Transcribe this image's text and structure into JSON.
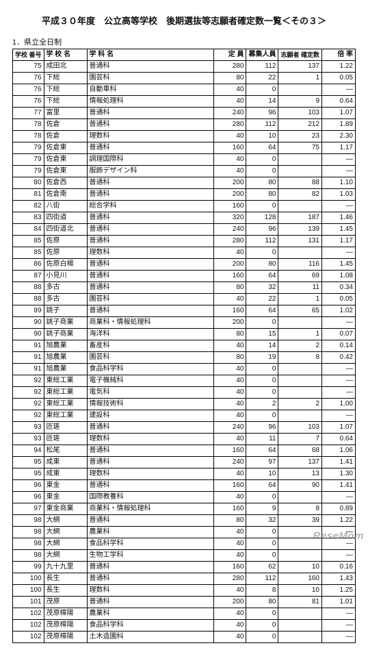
{
  "title": "平成３０年度　公立高等学校　後期選抜等志願者確定数一覧＜その３＞",
  "subtitle": "1．県立全日制",
  "headers": {
    "id": "学校\n番号",
    "school": "学 校 名",
    "dept": "学 科 名",
    "cap": "定 員",
    "rec": "募集人員",
    "app": "志願者\n確定数",
    "rate": "倍 率"
  },
  "rows": [
    {
      "id": "75",
      "school": "成田北",
      "dept": "普通科",
      "cap": "280",
      "rec": "112",
      "app": "137",
      "rate": "1.22"
    },
    {
      "id": "76",
      "school": "下総",
      "dept": "園芸科",
      "cap": "80",
      "rec": "22",
      "app": "1",
      "rate": "0.05"
    },
    {
      "id": "76",
      "school": "下総",
      "dept": "自動車科",
      "cap": "40",
      "rec": "0",
      "app": "",
      "rate": "—"
    },
    {
      "id": "76",
      "school": "下総",
      "dept": "情報処理科",
      "cap": "40",
      "rec": "14",
      "app": "9",
      "rate": "0.64"
    },
    {
      "id": "77",
      "school": "富里",
      "dept": "普通科",
      "cap": "240",
      "rec": "96",
      "app": "103",
      "rate": "1.07"
    },
    {
      "id": "78",
      "school": "佐倉",
      "dept": "普通科",
      "cap": "280",
      "rec": "112",
      "app": "212",
      "rate": "1.89"
    },
    {
      "id": "78",
      "school": "佐倉",
      "dept": "理数科",
      "cap": "40",
      "rec": "10",
      "app": "23",
      "rate": "2.30"
    },
    {
      "id": "79",
      "school": "佐倉東",
      "dept": "普通科",
      "cap": "160",
      "rec": "64",
      "app": "75",
      "rate": "1.17"
    },
    {
      "id": "79",
      "school": "佐倉東",
      "dept": "調理国際科",
      "cap": "40",
      "rec": "0",
      "app": "",
      "rate": "—"
    },
    {
      "id": "79",
      "school": "佐倉東",
      "dept": "服飾デザイン科",
      "cap": "40",
      "rec": "0",
      "app": "",
      "rate": "—"
    },
    {
      "id": "80",
      "school": "佐倉西",
      "dept": "普通科",
      "cap": "200",
      "rec": "80",
      "app": "88",
      "rate": "1.10"
    },
    {
      "id": "81",
      "school": "佐倉南",
      "dept": "普通科",
      "cap": "200",
      "rec": "80",
      "app": "82",
      "rate": "1.03"
    },
    {
      "id": "82",
      "school": "八街",
      "dept": "総合学科",
      "cap": "160",
      "rec": "0",
      "app": "",
      "rate": "—"
    },
    {
      "id": "83",
      "school": "四街道",
      "dept": "普通科",
      "cap": "320",
      "rec": "128",
      "app": "187",
      "rate": "1.46"
    },
    {
      "id": "84",
      "school": "四街道北",
      "dept": "普通科",
      "cap": "240",
      "rec": "96",
      "app": "139",
      "rate": "1.45"
    },
    {
      "id": "85",
      "school": "佐原",
      "dept": "普通科",
      "cap": "280",
      "rec": "112",
      "app": "131",
      "rate": "1.17"
    },
    {
      "id": "85",
      "school": "佐原",
      "dept": "理数科",
      "cap": "40",
      "rec": "0",
      "app": "",
      "rate": "—"
    },
    {
      "id": "86",
      "school": "佐原白楊",
      "dept": "普通科",
      "cap": "200",
      "rec": "80",
      "app": "116",
      "rate": "1.45"
    },
    {
      "id": "87",
      "school": "小見川",
      "dept": "普通科",
      "cap": "160",
      "rec": "64",
      "app": "69",
      "rate": "1.08"
    },
    {
      "id": "88",
      "school": "多古",
      "dept": "普通科",
      "cap": "80",
      "rec": "32",
      "app": "11",
      "rate": "0.34"
    },
    {
      "id": "88",
      "school": "多古",
      "dept": "園芸科",
      "cap": "40",
      "rec": "22",
      "app": "1",
      "rate": "0.05"
    },
    {
      "id": "89",
      "school": "銚子",
      "dept": "普通科",
      "cap": "160",
      "rec": "64",
      "app": "65",
      "rate": "1.02"
    },
    {
      "id": "90",
      "school": "銚子商業",
      "dept": "商業科・情報処理科",
      "cap": "200",
      "rec": "0",
      "app": "",
      "rate": "—"
    },
    {
      "id": "90",
      "school": "銚子商業",
      "dept": "海洋科",
      "cap": "80",
      "rec": "15",
      "app": "1",
      "rate": "0.07"
    },
    {
      "id": "91",
      "school": "旭農業",
      "dept": "畜産科",
      "cap": "40",
      "rec": "14",
      "app": "2",
      "rate": "0.14"
    },
    {
      "id": "91",
      "school": "旭農業",
      "dept": "園芸科",
      "cap": "80",
      "rec": "19",
      "app": "8",
      "rate": "0.42"
    },
    {
      "id": "91",
      "school": "旭農業",
      "dept": "食品科学科",
      "cap": "40",
      "rec": "0",
      "app": "",
      "rate": "—"
    },
    {
      "id": "92",
      "school": "東総工業",
      "dept": "電子機械科",
      "cap": "40",
      "rec": "0",
      "app": "",
      "rate": "—"
    },
    {
      "id": "92",
      "school": "東総工業",
      "dept": "電気科",
      "cap": "40",
      "rec": "0",
      "app": "",
      "rate": "—"
    },
    {
      "id": "92",
      "school": "東総工業",
      "dept": "情報技術科",
      "cap": "40",
      "rec": "2",
      "app": "2",
      "rate": "1.00"
    },
    {
      "id": "92",
      "school": "東総工業",
      "dept": "建設科",
      "cap": "40",
      "rec": "0",
      "app": "",
      "rate": "—"
    },
    {
      "id": "93",
      "school": "匝瑳",
      "dept": "普通科",
      "cap": "240",
      "rec": "96",
      "app": "103",
      "rate": "1.07"
    },
    {
      "id": "93",
      "school": "匝瑳",
      "dept": "理数科",
      "cap": "40",
      "rec": "11",
      "app": "7",
      "rate": "0.64"
    },
    {
      "id": "94",
      "school": "松尾",
      "dept": "普通科",
      "cap": "160",
      "rec": "64",
      "app": "68",
      "rate": "1.06"
    },
    {
      "id": "95",
      "school": "成東",
      "dept": "普通科",
      "cap": "240",
      "rec": "97",
      "app": "137",
      "rate": "1.41"
    },
    {
      "id": "95",
      "school": "成東",
      "dept": "理数科",
      "cap": "40",
      "rec": "10",
      "app": "13",
      "rate": "1.30"
    },
    {
      "id": "96",
      "school": "東金",
      "dept": "普通科",
      "cap": "160",
      "rec": "64",
      "app": "90",
      "rate": "1.41"
    },
    {
      "id": "96",
      "school": "東金",
      "dept": "国際教養科",
      "cap": "40",
      "rec": "0",
      "app": "",
      "rate": "—"
    },
    {
      "id": "97",
      "school": "東金商業",
      "dept": "商業科・情報処理科",
      "cap": "160",
      "rec": "9",
      "app": "8",
      "rate": "0.89"
    },
    {
      "id": "98",
      "school": "大網",
      "dept": "普通科",
      "cap": "80",
      "rec": "32",
      "app": "39",
      "rate": "1.22"
    },
    {
      "id": "98",
      "school": "大網",
      "dept": "農業科",
      "cap": "40",
      "rec": "0",
      "app": "",
      "rate": "—"
    },
    {
      "id": "98",
      "school": "大網",
      "dept": "食品科学科",
      "cap": "40",
      "rec": "0",
      "app": "",
      "rate": "—"
    },
    {
      "id": "98",
      "school": "大網",
      "dept": "生物工学科",
      "cap": "40",
      "rec": "0",
      "app": "",
      "rate": "—"
    },
    {
      "id": "99",
      "school": "九十九里",
      "dept": "普通科",
      "cap": "160",
      "rec": "62",
      "app": "10",
      "rate": "0.16"
    },
    {
      "id": "100",
      "school": "長生",
      "dept": "普通科",
      "cap": "280",
      "rec": "112",
      "app": "160",
      "rate": "1.43"
    },
    {
      "id": "100",
      "school": "長生",
      "dept": "理数科",
      "cap": "40",
      "rec": "8",
      "app": "10",
      "rate": "1.25"
    },
    {
      "id": "101",
      "school": "茂原",
      "dept": "普通科",
      "cap": "200",
      "rec": "80",
      "app": "81",
      "rate": "1.01"
    },
    {
      "id": "102",
      "school": "茂原樟陽",
      "dept": "農業科",
      "cap": "40",
      "rec": "0",
      "app": "",
      "rate": "—"
    },
    {
      "id": "102",
      "school": "茂原樟陽",
      "dept": "食品科学科",
      "cap": "40",
      "rec": "0",
      "app": "",
      "rate": "—"
    },
    {
      "id": "102",
      "school": "茂原樟陽",
      "dept": "土木造園科",
      "cap": "40",
      "rec": "0",
      "app": "",
      "rate": "—"
    }
  ],
  "watermark": "ReseMom"
}
